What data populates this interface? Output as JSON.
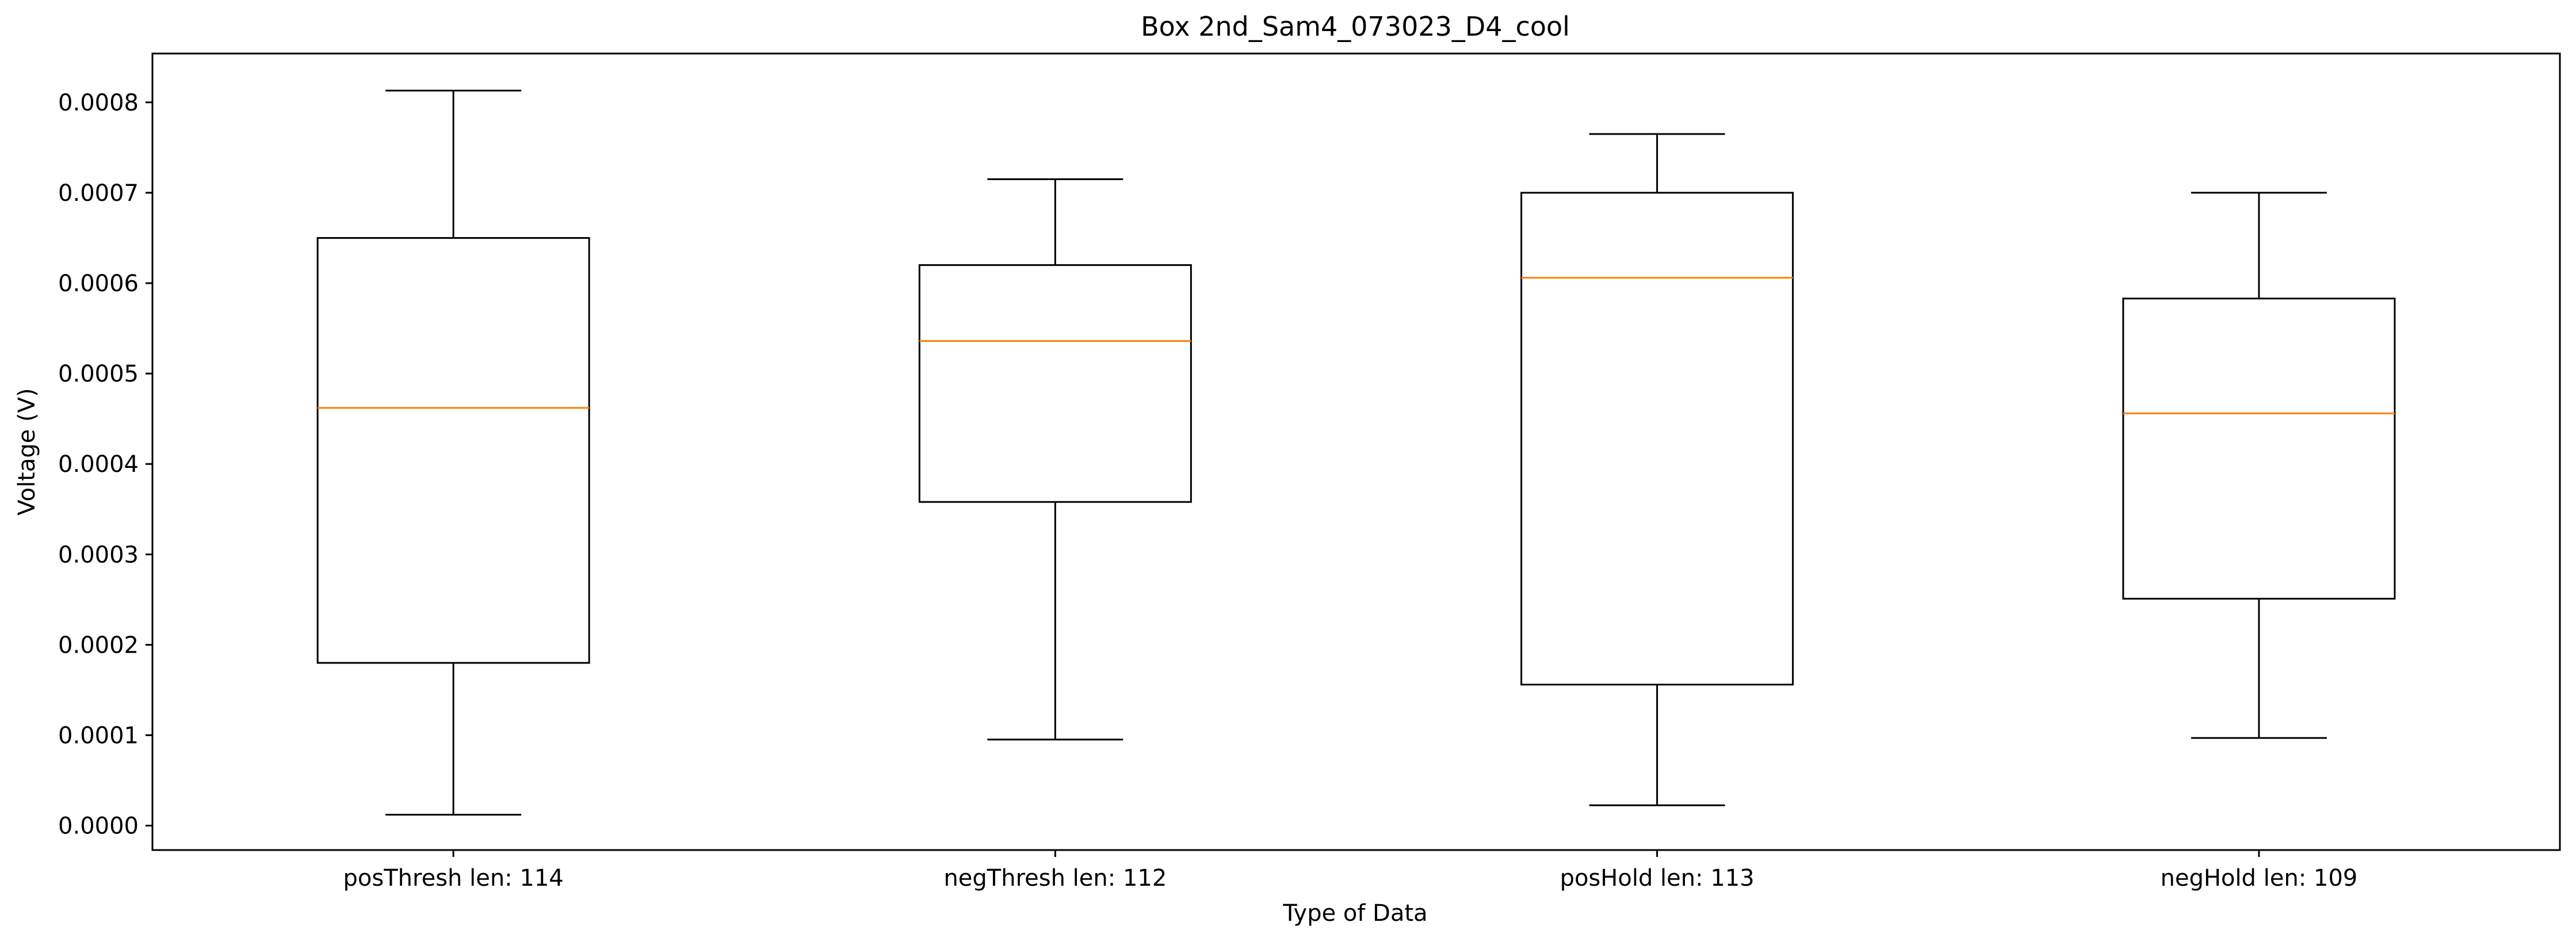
{
  "chart_data": {
    "type": "box",
    "title": "Box 2nd_Sam4_073023_D4_cool",
    "xlabel": "Type of Data",
    "ylabel": "Voltage (V)",
    "ylim": [
      -2.7e-05,
      0.000854
    ],
    "yticks": [
      0,
      0.0001,
      0.0002,
      0.0003,
      0.0004,
      0.0005,
      0.0006,
      0.0007,
      0.0008
    ],
    "ytick_labels": [
      "0.0000",
      "0.0001",
      "0.0002",
      "0.0003",
      "0.0004",
      "0.0005",
      "0.0006",
      "0.0007",
      "0.0008"
    ],
    "categories": [
      "posThresh len: 114",
      "negThresh len: 112",
      "posHold len: 113",
      "negHold len: 109"
    ],
    "boxes": [
      {
        "whisker_low": 1.21e-05,
        "q1": 0.00018,
        "median": 0.000462,
        "q3": 0.00065,
        "whisker_high": 0.000813
      },
      {
        "whisker_low": 9.52e-05,
        "q1": 0.000358,
        "median": 0.000536,
        "q3": 0.00062,
        "whisker_high": 0.000715
      },
      {
        "whisker_low": 2.25e-05,
        "q1": 0.000156,
        "median": 0.000606,
        "q3": 0.0007,
        "whisker_high": 0.000765
      },
      {
        "whisker_low": 9.7e-05,
        "q1": 0.000251,
        "median": 0.000456,
        "q3": 0.000583,
        "whisker_high": 0.0007
      }
    ],
    "grid": false,
    "colors": {
      "box": "#000000",
      "median": "#ff7f0e",
      "axes": "#000000"
    }
  }
}
